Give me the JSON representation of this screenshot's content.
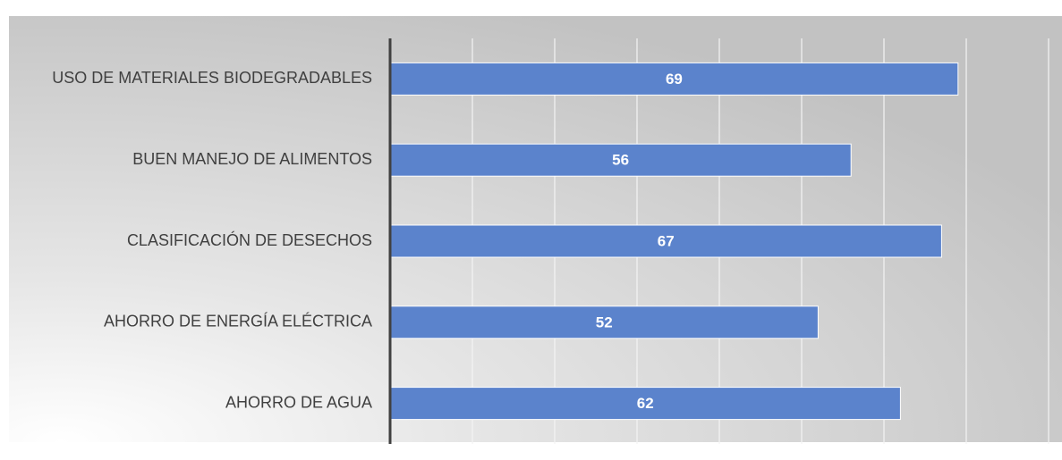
{
  "chart_data": {
    "type": "bar",
    "orientation": "horizontal",
    "categories": [
      "USO DE MATERIALES BIODEGRADABLES",
      "BUEN MANEJO DE ALIMENTOS",
      "CLASIFICACIÓN DE DESECHOS",
      "AHORRO DE ENERGÍA ELÉCTRICA",
      "AHORRO DE AGUA"
    ],
    "values": [
      69,
      56,
      67,
      52,
      62
    ],
    "color": "#5b83cc",
    "xlim": [
      0,
      80
    ],
    "xticks": [
      0,
      10,
      20,
      30,
      40,
      50,
      60,
      70,
      80
    ],
    "grid": true
  }
}
